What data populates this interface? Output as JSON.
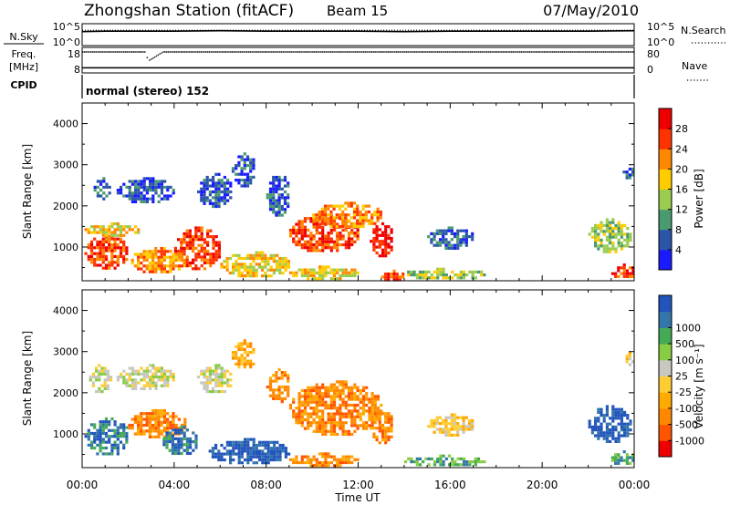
{
  "header": {
    "station": "Zhongshan Station (fitACF)",
    "beam": "Beam 15",
    "date": "07/May/2010"
  },
  "cpid_text": "normal (stereo) 152",
  "chart_data": [
    {
      "type": "line",
      "name": "nsky-nsearch",
      "left_label": "N.Sky",
      "right_label": "N.Search",
      "left_ticks": [
        "10^5",
        "10^0"
      ],
      "right_ticks": [
        "10^5",
        "10^0"
      ],
      "x": [
        0,
        1,
        2,
        4,
        6,
        8,
        10,
        12,
        14,
        16,
        18,
        20,
        22,
        24
      ],
      "y_solid": [
        3.2,
        3.3,
        3.3,
        3.3,
        3.4,
        3.3,
        3.3,
        3.3,
        3.2,
        3.3,
        3.3,
        3.3,
        3.3,
        3.4
      ],
      "y_dotted": [
        3.5,
        3.5,
        3.5,
        3.5,
        3.5,
        3.5,
        3.5,
        3.5,
        3.5,
        3.5,
        3.5,
        3.5,
        3.5,
        3.5
      ],
      "ylim": [
        0,
        5
      ]
    },
    {
      "type": "line",
      "name": "freq-nave",
      "left_label_lines": [
        "Freq.",
        "[MHz]"
      ],
      "right_label": "Nave",
      "left_ticks": [
        "18",
        "8"
      ],
      "right_ticks": [
        "80",
        "0"
      ],
      "freq_mhz": 10,
      "nave_x": [
        0.0,
        1.0,
        2.0,
        2.7,
        2.8,
        2.9,
        3.5,
        5.0,
        8.0,
        12.0,
        16.0,
        20.0,
        24.0
      ],
      "nave_y": [
        66,
        66,
        66,
        66,
        48,
        40,
        66,
        66,
        66,
        66,
        66,
        66,
        66
      ]
    },
    {
      "type": "heatmap",
      "name": "power",
      "ylabel": "Slant Range [km]",
      "yticks": [
        1000,
        2000,
        3000,
        4000
      ],
      "ylim": [
        180,
        4500
      ],
      "xlim": [
        0,
        24
      ],
      "colorbar_label": "Power [dB]",
      "colorbar_ticks": [
        "4",
        "8",
        "12",
        "16",
        "20",
        "24",
        "28"
      ],
      "colors": [
        "#1a1aff",
        "#2a55a8",
        "#4a9a70",
        "#9acc50",
        "#ffcc00",
        "#ff8800",
        "#ff3300",
        "#ee0000"
      ],
      "blobs": [
        {
          "t0": 0.1,
          "t1": 2.0,
          "r0": 500,
          "r1": 1300,
          "level": 6
        },
        {
          "t0": 0.1,
          "t1": 2.5,
          "r0": 1300,
          "r1": 1600,
          "level": 4
        },
        {
          "t0": 0.5,
          "t1": 1.2,
          "r0": 2200,
          "r1": 2700,
          "level": 1
        },
        {
          "t0": 1.5,
          "t1": 4.0,
          "r0": 2100,
          "r1": 2700,
          "level": 1
        },
        {
          "t0": 2.0,
          "t1": 4.5,
          "r0": 400,
          "r1": 1000,
          "level": 5
        },
        {
          "t0": 4.0,
          "t1": 6.0,
          "r0": 500,
          "r1": 1500,
          "level": 6
        },
        {
          "t0": 5.0,
          "t1": 6.5,
          "r0": 2000,
          "r1": 2800,
          "level": 1
        },
        {
          "t0": 6.0,
          "t1": 9.0,
          "r0": 300,
          "r1": 900,
          "level": 4
        },
        {
          "t0": 6.5,
          "t1": 7.5,
          "r0": 2500,
          "r1": 3300,
          "level": 1
        },
        {
          "t0": 8.0,
          "t1": 9.0,
          "r0": 1800,
          "r1": 2800,
          "level": 1
        },
        {
          "t0": 9.0,
          "t1": 12.0,
          "r0": 900,
          "r1": 1800,
          "level": 6
        },
        {
          "t0": 10.0,
          "t1": 13.0,
          "r0": 1500,
          "r1": 2100,
          "level": 5
        },
        {
          "t0": 12.5,
          "t1": 13.5,
          "r0": 800,
          "r1": 1600,
          "level": 7
        },
        {
          "t0": 9.0,
          "t1": 12.0,
          "r0": 250,
          "r1": 550,
          "level": 4
        },
        {
          "t0": 13.0,
          "t1": 14.0,
          "r0": 200,
          "r1": 450,
          "level": 6
        },
        {
          "t0": 14.0,
          "t1": 17.5,
          "r0": 250,
          "r1": 500,
          "level": 3
        },
        {
          "t0": 15.0,
          "t1": 17.0,
          "r0": 1000,
          "r1": 1500,
          "level": 1
        },
        {
          "t0": 22.0,
          "t1": 23.8,
          "r0": 900,
          "r1": 1700,
          "level": 3
        },
        {
          "t0": 23.0,
          "t1": 24.0,
          "r0": 250,
          "r1": 600,
          "level": 6
        },
        {
          "t0": 23.5,
          "t1": 24.0,
          "r0": 2700,
          "r1": 3000,
          "level": 1
        }
      ]
    },
    {
      "type": "heatmap",
      "name": "velocity",
      "ylabel": "Slant Range [km]",
      "yticks": [
        1000,
        2000,
        3000,
        4000
      ],
      "ylim": [
        180,
        4500
      ],
      "xlim": [
        0,
        24
      ],
      "colorbar_label": "Velocity [m s⁻¹]",
      "colorbar_ticks": [
        "-1000",
        "-500",
        "-100",
        "-25",
        "25",
        "100",
        "500",
        "1000"
      ],
      "colors": [
        "#ee0000",
        "#ff5500",
        "#ff8800",
        "#ffaa00",
        "#ffcc33",
        "#c8c8c0",
        "#88cc44",
        "#44aa55",
        "#3377aa",
        "#2255bb"
      ],
      "blobs": [
        {
          "t0": 0.1,
          "t1": 2.0,
          "r0": 500,
          "r1": 1400,
          "level": 8
        },
        {
          "t0": 0.3,
          "t1": 1.2,
          "r0": 2000,
          "r1": 2700,
          "level": 5
        },
        {
          "t0": 1.5,
          "t1": 4.0,
          "r0": 2100,
          "r1": 2700,
          "level": 5
        },
        {
          "t0": 2.0,
          "t1": 4.5,
          "r0": 900,
          "r1": 1600,
          "level": 2
        },
        {
          "t0": 3.5,
          "t1": 5.0,
          "r0": 500,
          "r1": 1200,
          "level": 8
        },
        {
          "t0": 5.0,
          "t1": 6.5,
          "r0": 2000,
          "r1": 2700,
          "level": 5
        },
        {
          "t0": 5.5,
          "t1": 9.0,
          "r0": 300,
          "r1": 900,
          "level": 9
        },
        {
          "t0": 6.5,
          "t1": 7.5,
          "r0": 2600,
          "r1": 3300,
          "level": 3
        },
        {
          "t0": 8.0,
          "t1": 9.0,
          "r0": 1800,
          "r1": 2600,
          "level": 2
        },
        {
          "t0": 9.0,
          "t1": 13.0,
          "r0": 1000,
          "r1": 2300,
          "level": 2
        },
        {
          "t0": 9.0,
          "t1": 12.0,
          "r0": 250,
          "r1": 550,
          "level": 2
        },
        {
          "t0": 12.5,
          "t1": 13.5,
          "r0": 800,
          "r1": 1600,
          "level": 2
        },
        {
          "t0": 14.0,
          "t1": 17.5,
          "r0": 250,
          "r1": 500,
          "level": 7
        },
        {
          "t0": 15.0,
          "t1": 17.0,
          "r0": 1000,
          "r1": 1500,
          "level": 4
        },
        {
          "t0": 22.0,
          "t1": 23.8,
          "r0": 800,
          "r1": 1700,
          "level": 9
        },
        {
          "t0": 23.0,
          "t1": 24.0,
          "r0": 250,
          "r1": 600,
          "level": 7
        },
        {
          "t0": 23.5,
          "t1": 24.0,
          "r0": 2700,
          "r1": 3000,
          "level": 4
        }
      ]
    }
  ],
  "x_axis": {
    "ticks": [
      "00:00",
      "04:00",
      "08:00",
      "12:00",
      "16:00",
      "20:00",
      "00:00"
    ],
    "label": "Time UT"
  },
  "colors": {
    "background": "#ffffff",
    "axis": "#000000"
  }
}
